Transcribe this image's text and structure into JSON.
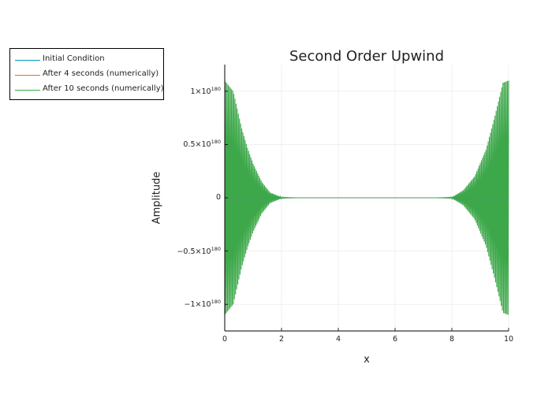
{
  "chart_data": {
    "type": "line",
    "title": "Second Order Upwind",
    "xlabel": "x",
    "ylabel": "Amplitude",
    "xlim": [
      0,
      10
    ],
    "ylim": [
      -1.25e+180,
      1.25e+180
    ],
    "x_ticks": [
      {
        "value": 0,
        "label": "0"
      },
      {
        "value": 2,
        "label": "2"
      },
      {
        "value": 4,
        "label": "4"
      },
      {
        "value": 6,
        "label": "6"
      },
      {
        "value": 8,
        "label": "8"
      },
      {
        "value": 10,
        "label": "10"
      }
    ],
    "y_ticks": [
      {
        "value": 1e+180,
        "mantissa": "1×10",
        "exponent": "180"
      },
      {
        "value": 5e+179,
        "mantissa": "0.5×10",
        "exponent": "180"
      },
      {
        "value": 0,
        "mantissa": "0",
        "exponent": ""
      },
      {
        "value": -5e+179,
        "mantissa": "−0.5×10",
        "exponent": "180"
      },
      {
        "value": -1e+180,
        "mantissa": "−1×10",
        "exponent": "180"
      }
    ],
    "grid": true,
    "legend_position": "top-left (outside plot)",
    "series": [
      {
        "name": "Initial Condition",
        "color": "#0099c6",
        "values": "≈0 everywhere at this scale"
      },
      {
        "name": "After 4 seconds (numerically)",
        "color": "#e26a3c",
        "values": "≈0 everywhere at this scale"
      },
      {
        "name": "After 10 seconds (numerically)",
        "color": "#3da84a",
        "shape": "rapid sawtooth oscillation, envelope peaks at both boundaries",
        "envelope": [
          {
            "x": 0.0,
            "y": 1.1e+180
          },
          {
            "x": 0.3,
            "y": 1e+180
          },
          {
            "x": 0.6,
            "y": 6.5e+179
          },
          {
            "x": 0.8,
            "y": 4.7e+179
          },
          {
            "x": 1.0,
            "y": 3.2e+179
          },
          {
            "x": 1.3,
            "y": 1.5e+179
          },
          {
            "x": 1.6,
            "y": 5e+178
          },
          {
            "x": 2.0,
            "y": 5e+177
          },
          {
            "x": 2.5,
            "y": 0
          },
          {
            "x": 7.5,
            "y": 0
          },
          {
            "x": 8.0,
            "y": 5e+177
          },
          {
            "x": 8.4,
            "y": 7e+178
          },
          {
            "x": 8.8,
            "y": 2e+179
          },
          {
            "x": 9.2,
            "y": 4.5e+179
          },
          {
            "x": 9.5,
            "y": 7.5e+179
          },
          {
            "x": 9.8,
            "y": 1.08e+180
          },
          {
            "x": 10.0,
            "y": 1.1e+180
          }
        ],
        "envelope_sign": "symmetric (±)"
      }
    ]
  }
}
